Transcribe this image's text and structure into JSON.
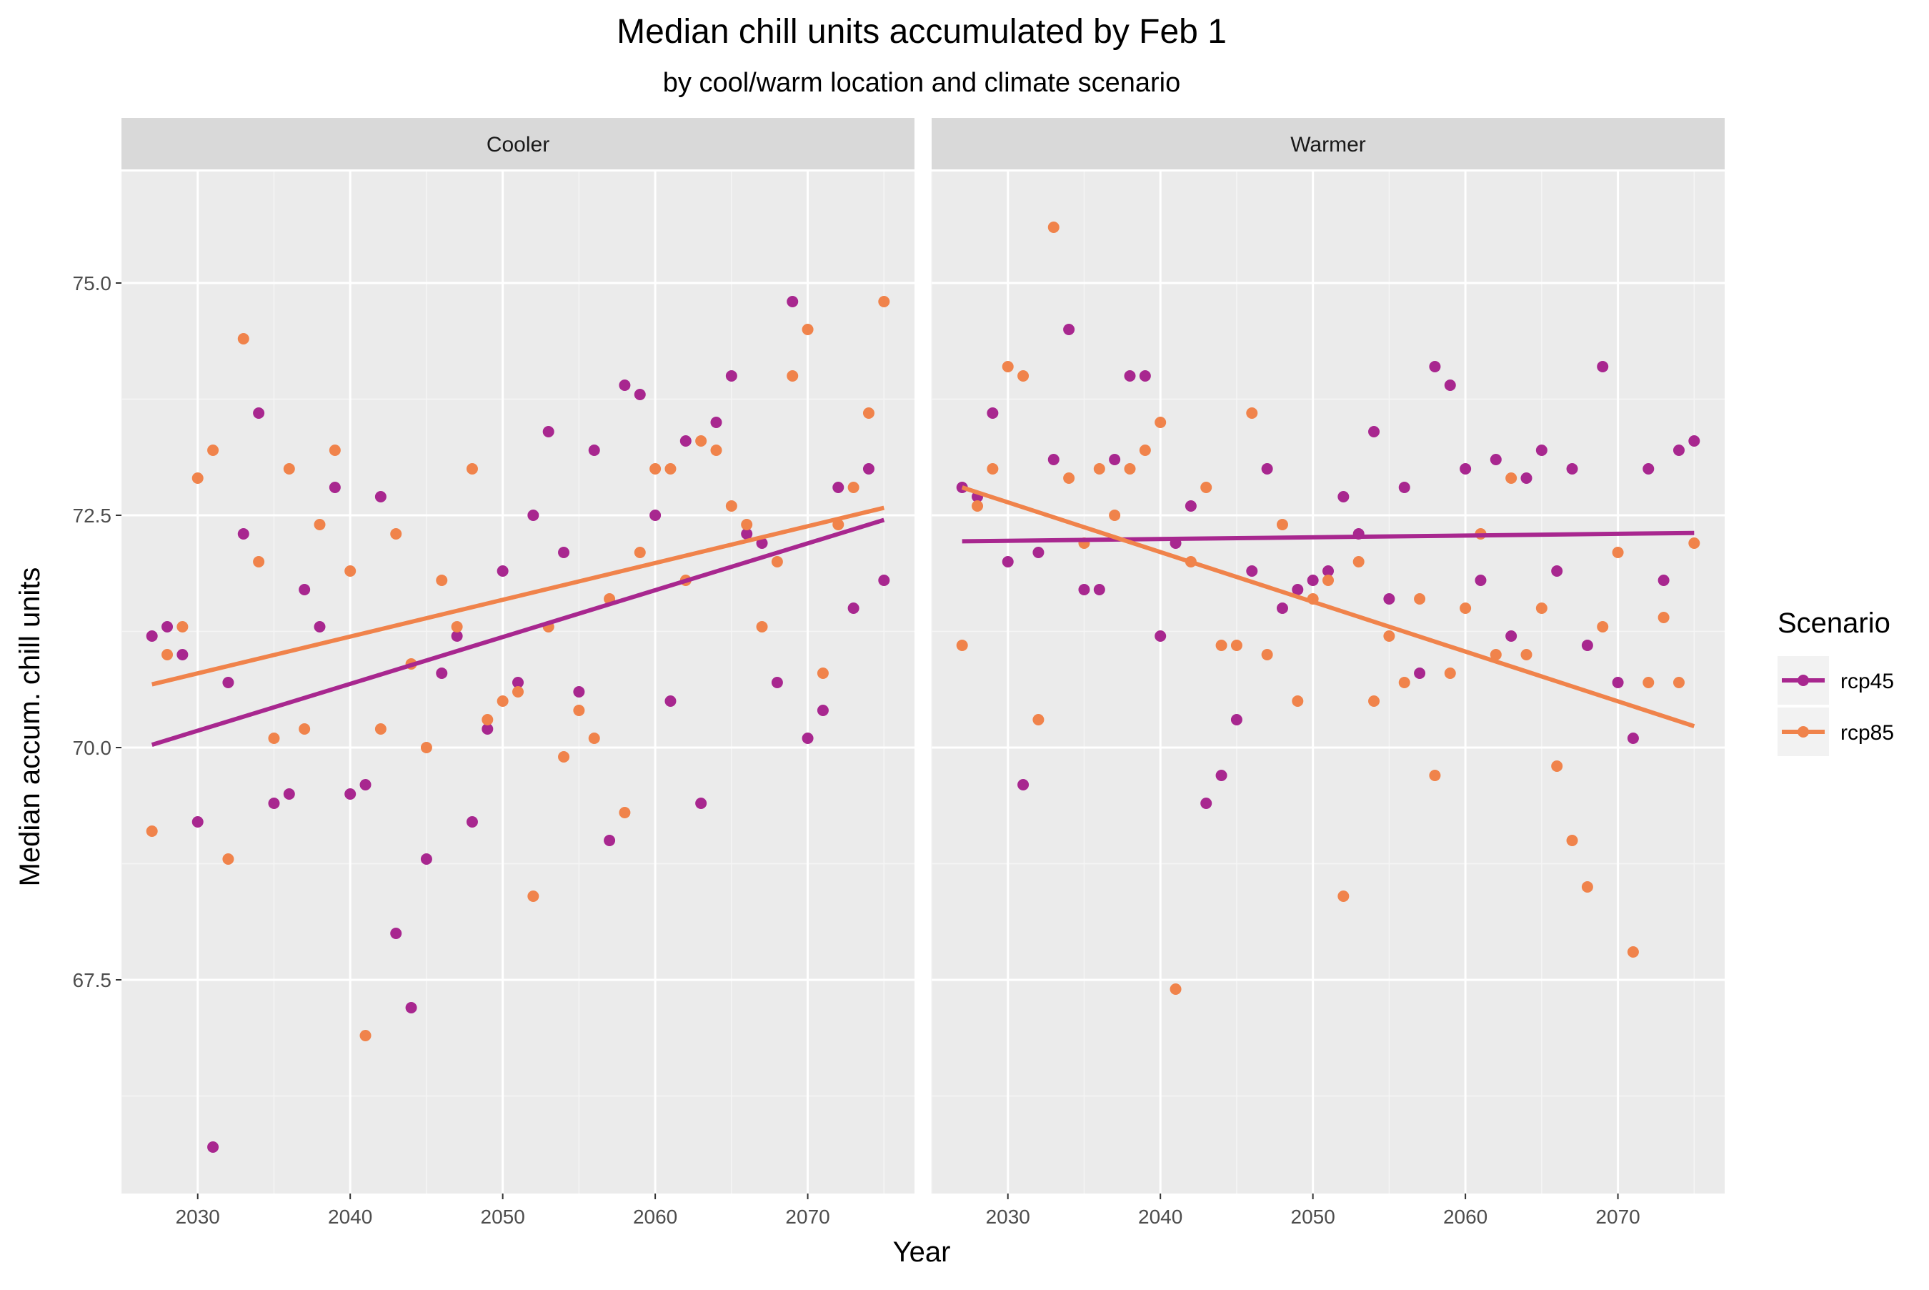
{
  "chart_data": {
    "type": "scatter",
    "title": "Median chill units accumulated by Feb 1",
    "subtitle": "by cool/warm location and climate scenario",
    "xlabel": "Year",
    "ylabel": "Median accum. chill units",
    "legend_title": "Scenario",
    "legend_position": "right",
    "grid": true,
    "xlim": [
      2025,
      2077
    ],
    "ylim": [
      65.2,
      76.2
    ],
    "x_ticks": [
      2030,
      2040,
      2050,
      2060,
      2070
    ],
    "x_tick_labels": [
      "2030",
      "2040",
      "2050",
      "2060",
      "2070"
    ],
    "y_ticks": [
      67.5,
      70.0,
      72.5,
      75.0
    ],
    "y_tick_labels": [
      "67.5",
      "70.0",
      "72.5",
      "75.0"
    ],
    "colors": {
      "rcp45": "#A8278F",
      "rcp85": "#F0834B"
    },
    "series_names": [
      "rcp45",
      "rcp85"
    ],
    "panels": [
      {
        "label": "Cooler",
        "series": [
          {
            "name": "rcp45",
            "x": [
              2027,
              2028,
              2029,
              2030,
              2031,
              2032,
              2033,
              2034,
              2035,
              2036,
              2037,
              2038,
              2039,
              2040,
              2041,
              2042,
              2043,
              2044,
              2045,
              2046,
              2047,
              2048,
              2049,
              2050,
              2051,
              2052,
              2053,
              2054,
              2055,
              2056,
              2057,
              2058,
              2059,
              2060,
              2061,
              2062,
              2063,
              2064,
              2065,
              2066,
              2067,
              2068,
              2069,
              2070,
              2071,
              2072,
              2073,
              2074,
              2075
            ],
            "y": [
              71.2,
              71.3,
              71.0,
              69.2,
              65.7,
              70.7,
              72.3,
              73.6,
              69.4,
              69.5,
              71.7,
              71.3,
              72.8,
              69.5,
              69.6,
              72.7,
              68.0,
              67.2,
              68.8,
              70.8,
              71.2,
              69.2,
              70.2,
              71.9,
              70.7,
              72.5,
              73.4,
              72.1,
              70.6,
              73.2,
              69.0,
              73.9,
              73.8,
              72.5,
              70.5,
              73.3,
              69.4,
              73.5,
              74.0,
              72.3,
              72.2,
              70.7,
              74.8,
              70.1,
              70.4,
              72.8,
              71.5,
              73.0,
              71.8
            ]
          },
          {
            "name": "rcp85",
            "x": [
              2027,
              2028,
              2029,
              2030,
              2031,
              2032,
              2033,
              2034,
              2035,
              2036,
              2037,
              2038,
              2039,
              2040,
              2041,
              2042,
              2043,
              2044,
              2045,
              2046,
              2047,
              2048,
              2049,
              2050,
              2051,
              2052,
              2053,
              2054,
              2055,
              2056,
              2057,
              2058,
              2059,
              2060,
              2061,
              2062,
              2063,
              2064,
              2065,
              2066,
              2067,
              2068,
              2069,
              2070,
              2071,
              2072,
              2073,
              2074,
              2075
            ],
            "y": [
              69.1,
              71.0,
              71.3,
              72.9,
              73.2,
              68.8,
              74.4,
              72.0,
              70.1,
              73.0,
              70.2,
              72.4,
              73.2,
              71.9,
              66.9,
              70.2,
              72.3,
              70.9,
              70.0,
              71.8,
              71.3,
              73.0,
              70.3,
              70.5,
              70.6,
              68.4,
              71.3,
              69.9,
              70.4,
              70.1,
              71.6,
              69.3,
              72.1,
              73.0,
              73.0,
              71.8,
              73.3,
              73.2,
              72.6,
              72.4,
              71.3,
              72.0,
              74.0,
              74.5,
              70.8,
              72.4,
              72.8,
              73.6,
              74.8
            ]
          }
        ],
        "trend_lines": [
          {
            "name": "rcp45",
            "x": [
              2027,
              2075
            ],
            "y": [
              70.03,
              72.45
            ]
          },
          {
            "name": "rcp85",
            "x": [
              2027,
              2075
            ],
            "y": [
              70.68,
              72.58
            ]
          }
        ]
      },
      {
        "label": "Warmer",
        "series": [
          {
            "name": "rcp45",
            "x": [
              2027,
              2028,
              2029,
              2030,
              2031,
              2032,
              2033,
              2034,
              2035,
              2036,
              2037,
              2038,
              2039,
              2040,
              2041,
              2042,
              2043,
              2044,
              2045,
              2046,
              2047,
              2048,
              2049,
              2050,
              2051,
              2052,
              2053,
              2054,
              2055,
              2056,
              2057,
              2058,
              2059,
              2060,
              2061,
              2062,
              2063,
              2064,
              2065,
              2066,
              2067,
              2068,
              2069,
              2070,
              2071,
              2072,
              2073,
              2074,
              2075
            ],
            "y": [
              72.8,
              72.7,
              73.6,
              72.0,
              69.6,
              72.1,
              73.1,
              74.5,
              71.7,
              71.7,
              73.1,
              74.0,
              74.0,
              71.2,
              72.2,
              72.6,
              69.4,
              69.7,
              70.3,
              71.9,
              73.0,
              71.5,
              71.7,
              71.8,
              71.9,
              72.7,
              72.3,
              73.4,
              71.6,
              72.8,
              70.8,
              74.1,
              73.9,
              73.0,
              71.8,
              73.1,
              71.2,
              72.9,
              73.2,
              71.9,
              73.0,
              71.1,
              74.1,
              70.7,
              70.1,
              73.0,
              71.8,
              73.2,
              73.3
            ]
          },
          {
            "name": "rcp85",
            "x": [
              2027,
              2028,
              2029,
              2030,
              2031,
              2032,
              2033,
              2034,
              2035,
              2036,
              2037,
              2038,
              2039,
              2040,
              2041,
              2042,
              2043,
              2044,
              2045,
              2046,
              2047,
              2048,
              2049,
              2050,
              2051,
              2052,
              2053,
              2054,
              2055,
              2056,
              2057,
              2058,
              2059,
              2060,
              2061,
              2062,
              2063,
              2064,
              2065,
              2066,
              2067,
              2068,
              2069,
              2070,
              2071,
              2072,
              2073,
              2074,
              2075
            ],
            "y": [
              71.1,
              72.6,
              73.0,
              74.1,
              74.0,
              70.3,
              75.6,
              72.9,
              72.2,
              73.0,
              72.5,
              73.0,
              73.2,
              73.5,
              67.4,
              72.0,
              72.8,
              71.1,
              71.1,
              73.6,
              71.0,
              72.4,
              70.5,
              71.6,
              71.8,
              68.4,
              72.0,
              70.5,
              71.2,
              70.7,
              71.6,
              69.7,
              70.8,
              71.5,
              72.3,
              71.0,
              72.9,
              71.0,
              71.5,
              69.8,
              69.0,
              68.5,
              71.3,
              72.1,
              67.8,
              70.7,
              71.4,
              70.7,
              72.2
            ]
          }
        ],
        "trend_lines": [
          {
            "name": "rcp45",
            "x": [
              2027,
              2075
            ],
            "y": [
              72.22,
              72.31
            ]
          },
          {
            "name": "rcp85",
            "x": [
              2027,
              2075
            ],
            "y": [
              72.8,
              70.23
            ]
          }
        ]
      }
    ]
  }
}
